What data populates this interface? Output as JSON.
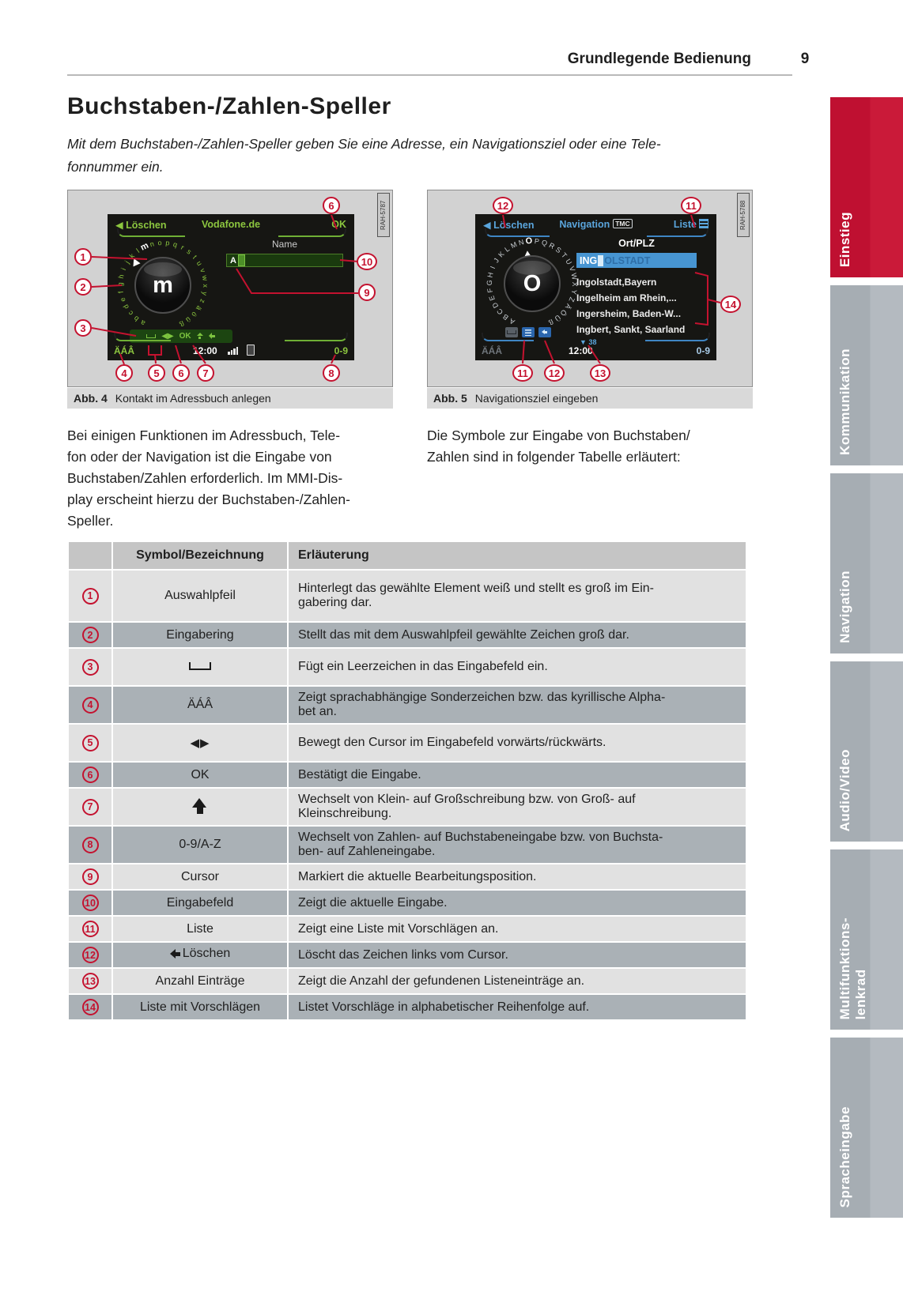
{
  "header": {
    "section": "Grundlegende Bedienung",
    "page": "9"
  },
  "title": "Buchstaben-/Zahlen-Speller",
  "intro": "Mit dem Buchstaben-/Zahlen-Speller geben Sie eine Adresse, ein Navigationsziel oder eine Tele-\nfonnummer ein.",
  "paragraphs": {
    "left": "Bei einigen Funktionen im Adressbuch, Tele-\nfon oder der Navigation ist die Eingabe von\nBuchstaben/Zahlen erforderlich. Im MMI-Dis-\nplay erscheint hierzu der Buchstaben-/Zahlen-\nSpeller.",
    "right": "Die Symbole zur Eingabe von Buchstaben/\nZahlen sind in folgender Tabelle erläutert:"
  },
  "figures": {
    "fig4": {
      "caption_label": "Abb. 4",
      "caption": "Kontakt im Adressbuch anlegen",
      "tag": "RAH-5787",
      "screen": {
        "back": "Löschen",
        "title": "Vodafone.de",
        "ok": "OK",
        "field_label": "Name",
        "input_value": "A",
        "bar_ok": "OK",
        "bar_arrows": "◀▶",
        "special": "ÄÁÂ",
        "time": "12:00",
        "numbers": "0-9",
        "center_letter": "m"
      },
      "ring": {
        "letters": "abcdefghijklmnopqrstuvwxyzäöüß",
        "radius": 54,
        "start": -152,
        "span": 306,
        "highlight": "m"
      },
      "callouts": [
        "6",
        "1",
        "2",
        "3",
        "10",
        "9",
        "4",
        "5",
        "6",
        "7",
        "8"
      ]
    },
    "fig5": {
      "caption_label": "Abb. 5",
      "caption": "Navigationsziel eingeben",
      "tag": "RAH-5788",
      "screen": {
        "back": "Löschen",
        "title": "Navigation",
        "tmc": "TMC",
        "list": "Liste",
        "field_label": "Ort/PLZ",
        "input_typed": "ING",
        "input_ghost": "OLSTADT",
        "list_items": [
          "Ingolstadt,Bayern",
          "Ingelheim am Rhein,...",
          "Ingersheim, Baden-W...",
          "Ingbert, Sankt, Saarland"
        ],
        "count_marker": "▼",
        "count": "38",
        "special": "ÄÁÂ",
        "time": "12:00",
        "numbers": "0-9",
        "center_letter": "O"
      },
      "ring": {
        "letters": "ABCDEFGHIJKLMNOPQRSTUVWXYZÄÖÜß",
        "radius": 54,
        "start": -152,
        "span": 306,
        "highlight": "O"
      },
      "callouts": [
        "12",
        "11",
        "14",
        "11",
        "12",
        "13"
      ]
    }
  },
  "table": {
    "col_symbol": "Symbol/Bezeichnung",
    "col_desc": "Erläuterung",
    "rows": [
      {
        "num": "1",
        "symbol": "Auswahlpfeil",
        "desc": "Hinterlegt das gewählte Element weiß und stellt es groß im Ein-\ngabering dar."
      },
      {
        "num": "2",
        "symbol": "Eingabering",
        "desc": "Stellt das mit dem Auswahlpfeil gewählte Zeichen groß dar."
      },
      {
        "num": "3",
        "symbol": "",
        "desc": "Fügt ein Leerzeichen in das Eingabefeld ein."
      },
      {
        "num": "4",
        "symbol": "ÄÁÂ",
        "desc": "Zeigt sprachabhängige Sonderzeichen bzw. das kyrillische Alpha-\nbet an."
      },
      {
        "num": "5",
        "symbol": "◀▶",
        "desc": "Bewegt den Cursor im Eingabefeld vorwärts/rückwärts."
      },
      {
        "num": "6",
        "symbol": "OK",
        "desc": "Bestätigt die Eingabe."
      },
      {
        "num": "7",
        "symbol": "",
        "desc": "Wechselt von Klein- auf Großschreibung bzw. von Groß- auf\nKleinschreibung."
      },
      {
        "num": "8",
        "symbol": "0-9/A-Z",
        "desc": "Wechselt von Zahlen- auf Buchstabeneingabe bzw. von Buchsta-\nben- auf Zahleneingabe."
      },
      {
        "num": "9",
        "symbol": "Cursor",
        "desc": "Markiert die aktuelle Bearbeitungsposition."
      },
      {
        "num": "10",
        "symbol": "Eingabefeld",
        "desc": "Zeigt die aktuelle Eingabe."
      },
      {
        "num": "11",
        "symbol": "Liste",
        "desc": "Zeigt eine Liste mit Vorschlägen an."
      },
      {
        "num": "12",
        "symbol": "Löschen",
        "desc": "Löscht das Zeichen links vom Cursor."
      },
      {
        "num": "13",
        "symbol": "Anzahl Einträge",
        "desc": "Zeigt die Anzahl der gefundenen Listeneinträge an."
      },
      {
        "num": "14",
        "symbol": "Liste mit Vorschlägen",
        "desc": "Listet Vorschläge in alphabetischer Reihenfolge auf."
      }
    ]
  },
  "sidebar": {
    "active_color": "#c21733",
    "inactive_color": "#a8afb5",
    "tabs": [
      {
        "label": "Einstieg"
      },
      {
        "label": "Kommunikation"
      },
      {
        "label": "Navigation"
      },
      {
        "label": "Audio/Video"
      },
      {
        "label": "Multifunktions-\nlenkrad"
      },
      {
        "label": "Spracheingabe"
      }
    ]
  }
}
